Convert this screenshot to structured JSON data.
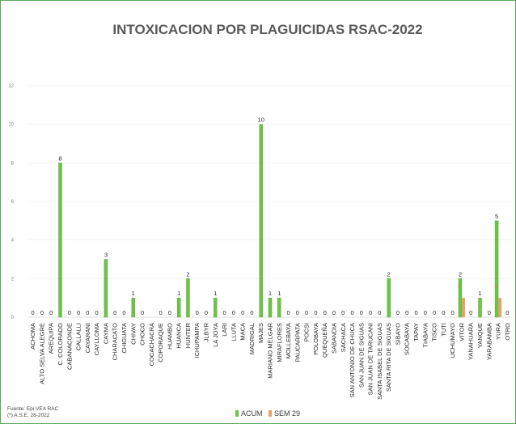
{
  "chart_data": {
    "type": "bar",
    "title": "INTOXICACION POR PLAGUICIDAS RSAC-2022",
    "ylim": [
      0,
      12
    ],
    "yticks": [
      "0",
      "2",
      "4",
      "6",
      "8",
      "10",
      "12"
    ],
    "categories": [
      "ACHOMA",
      "ALTO SELVA ALEGRE",
      "AREQUIPA",
      "C. COLORADO",
      "CABANACONDE",
      "CALLALLI",
      "CAYARANI",
      "CAYLLOMA",
      "CAYMA",
      "CHARACATO",
      "CHIGUATA",
      "CHIVAY",
      "CHOCO",
      "COCACHACRA",
      "COPORAQUE",
      "HUAMBO",
      "HUANCA",
      "HUNTER",
      "ICHUPAMPA",
      "JLBYR",
      "LA JOYA",
      "LARI",
      "LLUTA",
      "MACA",
      "MADRIGAL",
      "MAJES",
      "MARIANO MELGAR",
      "MIRAFLORES",
      "MOLLEBAYA",
      "PAUCARPATA",
      "POCSI",
      "POLOBAYA",
      "QUEQUEÑA",
      "SABANDIA",
      "SACHACA",
      "SAN ANTONIO DE CHUCA",
      "SAN JUAN DE SIGUAS",
      "SAN JUAN DE TARUCANI",
      "SANTA ISABEL DE SIGUAS",
      "SANTA RITA DE SIGUAS",
      "SIBAYO",
      "SOCABAYA",
      "TAPAY",
      "TIABAYA",
      "TISCO",
      "TUTI",
      "UCHUMAYO",
      "VITOR",
      "YANAHUARA",
      "YANQUE",
      "YARABAMBA",
      "YURA",
      "OTRO"
    ],
    "series": [
      {
        "name": "ACUM",
        "color": "#6cc644",
        "values": [
          0,
          0,
          0,
          8,
          0,
          0,
          0,
          0,
          3,
          0,
          0,
          1,
          0,
          null,
          0,
          0,
          1,
          2,
          0,
          0,
          1,
          0,
          0,
          0,
          0,
          10,
          1,
          1,
          0,
          0,
          0,
          0,
          0,
          0,
          0,
          0,
          0,
          0,
          0,
          2,
          0,
          0,
          0,
          0,
          0,
          0,
          0,
          2,
          0,
          1,
          0,
          5,
          0
        ]
      },
      {
        "name": "SEM 29",
        "color": "#e8a06a",
        "values": [
          null,
          null,
          null,
          null,
          null,
          null,
          null,
          null,
          null,
          null,
          null,
          null,
          null,
          null,
          null,
          null,
          null,
          null,
          null,
          null,
          null,
          null,
          null,
          null,
          null,
          null,
          null,
          null,
          null,
          null,
          null,
          null,
          null,
          null,
          null,
          null,
          null,
          null,
          null,
          null,
          null,
          null,
          null,
          null,
          null,
          null,
          null,
          1,
          null,
          null,
          null,
          1,
          null
        ]
      }
    ],
    "legend": [
      "ACUM",
      "SEM 29"
    ],
    "legend_position": "bottom"
  },
  "source_lines": [
    "Fuente: Epi VEA RAC",
    "(*) A.S.E. 28-2022"
  ]
}
